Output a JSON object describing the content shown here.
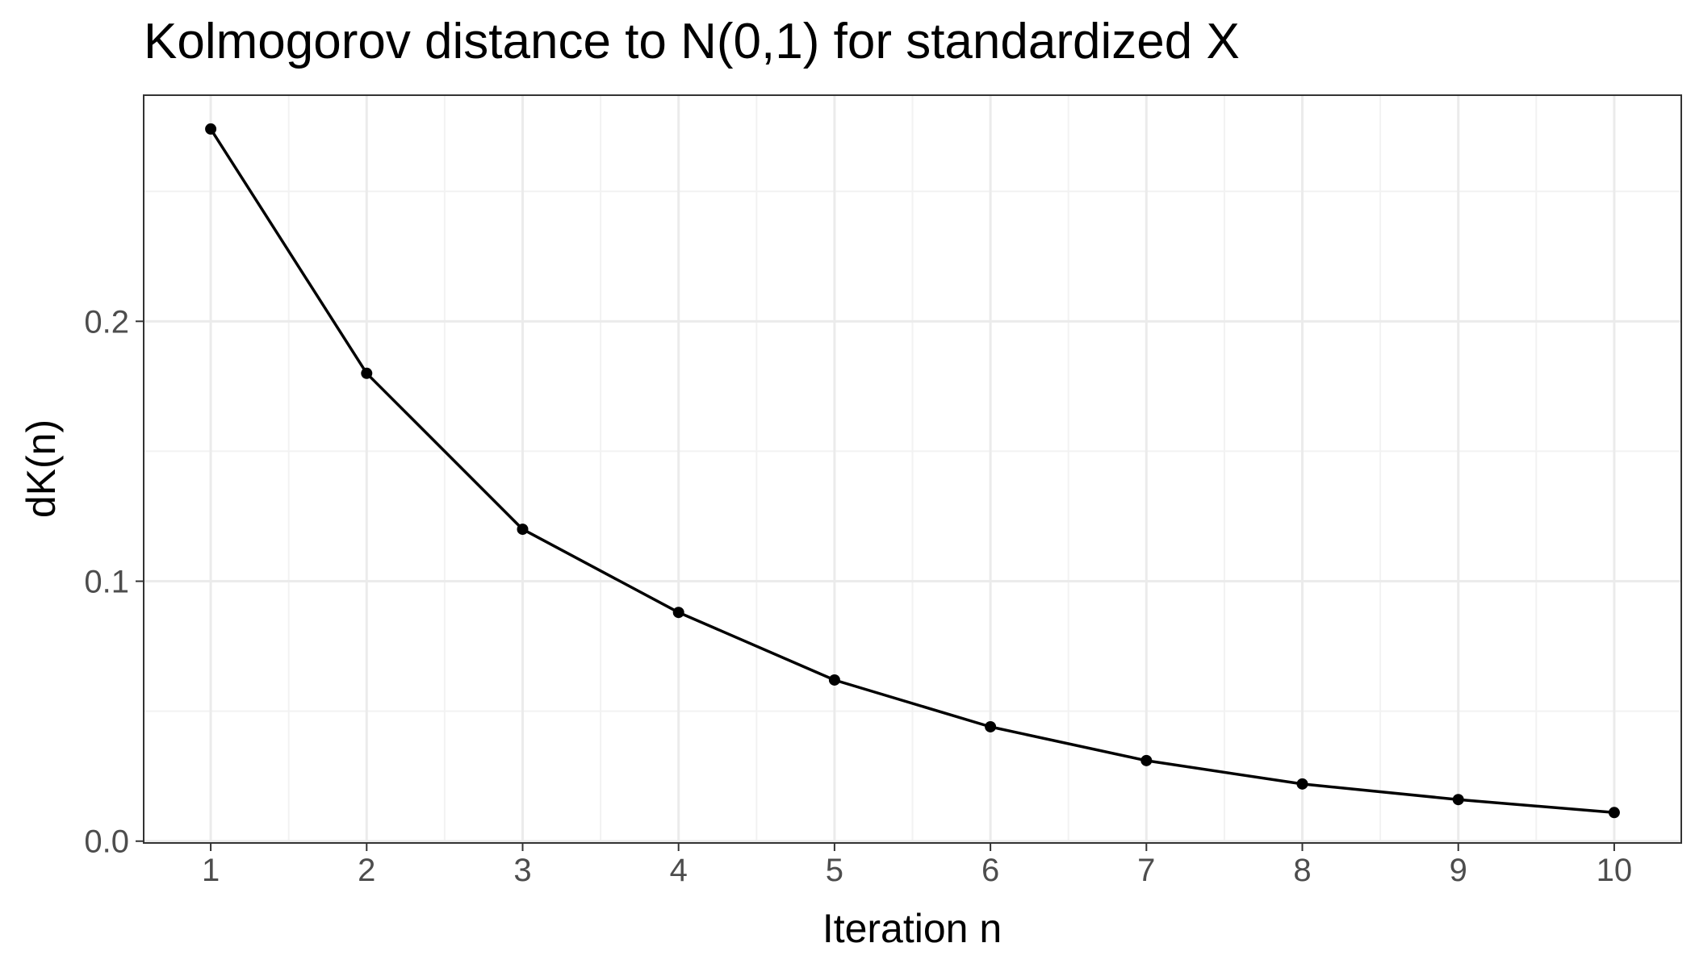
{
  "chart_data": {
    "type": "line",
    "title": "Kolmogorov distance to N(0,1) for standardized X",
    "xlabel": "Iteration n",
    "ylabel": "dK(n)",
    "x": [
      1,
      2,
      3,
      4,
      5,
      6,
      7,
      8,
      9,
      10
    ],
    "series": [
      {
        "values": [
          0.274,
          0.18,
          0.12,
          0.088,
          0.062,
          0.044,
          0.031,
          0.022,
          0.016,
          0.011
        ]
      }
    ],
    "xlim": [
      0.57,
      10.43
    ],
    "ylim": [
      -0.0007,
      0.287
    ],
    "x_ticks": [
      1,
      2,
      3,
      4,
      5,
      6,
      7,
      8,
      9,
      10
    ],
    "x_tick_labels": [
      "1",
      "2",
      "3",
      "4",
      "5",
      "6",
      "7",
      "8",
      "9",
      "10"
    ],
    "y_ticks": [
      0.0,
      0.1,
      0.2
    ],
    "y_tick_labels": [
      "0.0",
      "0.1",
      "0.2"
    ],
    "grid": true,
    "legend": "none",
    "colors": {
      "line": "#000000",
      "points": "#000000",
      "major_grid": "#ebebeb",
      "minor_grid": "#f2f2f2",
      "panel_border": "#333333",
      "tick_label": "#4d4d4d"
    }
  }
}
